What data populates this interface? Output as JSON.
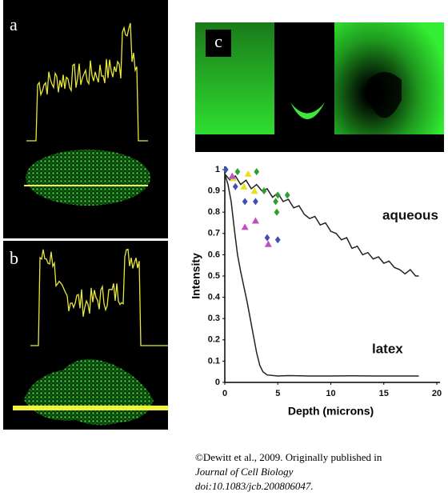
{
  "panel_labels": [
    "a",
    "b",
    "c"
  ],
  "credit": {
    "line1": "©Dewitt et al., 2009. Originally published in",
    "journal": "Journal of Cell Biology",
    "doi": "doi:10.1083/jcb.200806047."
  },
  "chart_data": {
    "type": "line",
    "xlabel": "Depth (microns)",
    "ylabel": "Intensity",
    "xlim": [
      0,
      20
    ],
    "ylim": [
      0,
      1
    ],
    "xticks": [
      0,
      5,
      10,
      15,
      20
    ],
    "yticks": [
      0,
      0.1,
      0.2,
      0.3,
      0.4,
      0.5,
      0.6,
      0.7,
      0.8,
      0.9,
      1
    ],
    "series": [
      {
        "name": "aqueous",
        "type": "line",
        "color": "#222222",
        "x": [
          0,
          0.5,
          1,
          1.5,
          2,
          2.5,
          3,
          3.5,
          4,
          4.5,
          5,
          5.5,
          6,
          6.5,
          7,
          7.5,
          8,
          8.5,
          9,
          9.5,
          10,
          10.5,
          11,
          11.5,
          12,
          12.5,
          13,
          13.5,
          14,
          14.5,
          15,
          15.5,
          16,
          16.5,
          17,
          17.5,
          18,
          18.3
        ],
        "values": [
          0.98,
          0.95,
          0.97,
          0.93,
          0.95,
          0.91,
          0.93,
          0.9,
          0.91,
          0.87,
          0.89,
          0.85,
          0.86,
          0.82,
          0.83,
          0.79,
          0.77,
          0.78,
          0.74,
          0.75,
          0.71,
          0.7,
          0.67,
          0.68,
          0.63,
          0.64,
          0.6,
          0.61,
          0.58,
          0.59,
          0.56,
          0.57,
          0.54,
          0.53,
          0.51,
          0.53,
          0.5,
          0.5
        ]
      },
      {
        "name": "latex",
        "type": "line",
        "color": "#222222",
        "x": [
          0,
          0.3,
          0.6,
          0.9,
          1.2,
          1.5,
          1.8,
          2.1,
          2.4,
          2.7,
          3,
          3.3,
          3.6,
          4,
          5,
          6,
          8,
          10,
          12,
          14,
          16,
          18.3
        ],
        "values": [
          0.98,
          0.93,
          0.85,
          0.72,
          0.6,
          0.52,
          0.45,
          0.38,
          0.3,
          0.22,
          0.14,
          0.08,
          0.05,
          0.035,
          0.03,
          0.032,
          0.03,
          0.03,
          0.031,
          0.03,
          0.03,
          0.03
        ]
      },
      {
        "type": "scatter",
        "marker": "diamond",
        "color": "#2e9e2e",
        "x": [
          1.2,
          3,
          3.7,
          5,
          4.8,
          5.9,
          4.9
        ],
        "values": [
          0.99,
          0.99,
          0.9,
          0.88,
          0.85,
          0.88,
          0.8
        ]
      },
      {
        "type": "scatter",
        "marker": "triangle",
        "color": "#e8e020",
        "x": [
          0.8,
          1.8,
          2.8,
          2.2
        ],
        "values": [
          0.96,
          0.92,
          0.9,
          0.98
        ]
      },
      {
        "type": "scatter",
        "marker": "triangle",
        "color": "#c050c0",
        "x": [
          0.7,
          1.9,
          2.9,
          4.1
        ],
        "values": [
          0.97,
          0.73,
          0.76,
          0.65
        ]
      },
      {
        "type": "scatter",
        "marker": "diamond",
        "color": "#4050b0",
        "x": [
          0.1,
          1,
          1.9,
          2.9,
          4,
          5
        ],
        "values": [
          1,
          0.92,
          0.85,
          0.85,
          0.68,
          0.67
        ]
      }
    ]
  }
}
